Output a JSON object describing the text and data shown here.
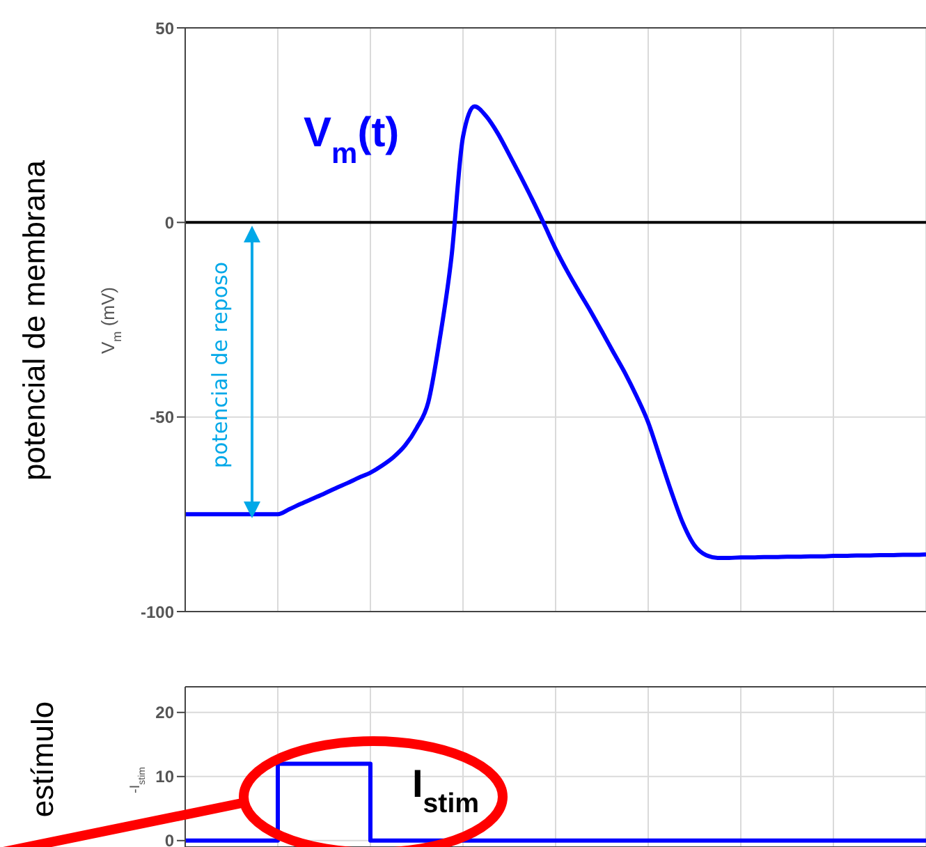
{
  "chart_data": [
    {
      "type": "line",
      "ylabel": "V$_{m}$ (mV)",
      "ylim": [
        -100,
        50
      ],
      "yticks": [
        -100,
        -50,
        0,
        50
      ],
      "grid": true,
      "tick_labels": "y",
      "annotations": [
        "potencial de membrana",
        "potencial de reposo"
      ],
      "ref_lines": [
        {
          "axis": "y",
          "value": 0,
          "color": "#000000"
        }
      ],
      "categories": [
        null,
        null,
        null,
        null,
        null,
        null,
        null,
        null,
        null,
        null,
        null,
        null,
        null,
        null,
        null,
        null,
        null,
        null,
        null,
        null,
        null,
        null,
        null,
        null,
        null,
        null,
        null,
        null,
        null,
        null,
        null,
        null,
        null,
        null,
        null,
        null,
        null,
        null,
        null,
        null,
        null,
        null,
        null,
        null,
        null,
        null,
        null,
        null,
        null,
        null,
        null,
        null,
        null,
        null,
        null,
        null,
        null,
        null,
        null,
        null,
        null,
        null,
        null,
        null,
        null
      ],
      "series": [
        {
          "name": "V$_{m}$(t)",
          "color": "#0000ff",
          "values": [
            -75,
            -75,
            -75,
            -75,
            -75,
            -75,
            -75,
            -75,
            -75,
            -73.7,
            -72.3,
            -71,
            -69.7,
            -68.3,
            -67,
            -65.6,
            -64.3,
            -62.5,
            -60.3,
            -57.3,
            -52.8,
            -46.2,
            -29.8,
            -9,
            22,
            29.8,
            27.3,
            22.9,
            17.4,
            11.7,
            5.8,
            -0.4,
            -6.8,
            -12.5,
            -17.7,
            -22.7,
            -28,
            -33.4,
            -38.7,
            -44.7,
            -51.4,
            -60.3,
            -69.2,
            -77.3,
            -83,
            -85.5,
            -86.2,
            -86.2,
            -86.1,
            -86.1,
            -86,
            -86,
            -85.9,
            -85.9,
            -85.8,
            -85.8,
            -85.7,
            -85.7,
            -85.6,
            -85.6,
            -85.5,
            -85.5,
            -85.4,
            -85.4,
            -85.3
          ]
        }
      ]
    },
    {
      "type": "step",
      "ylabel": "-I$_{stim}$",
      "ylim": [
        -1,
        24
      ],
      "yticks": [
        0,
        10,
        20
      ],
      "grid": true,
      "tick_labels": "y",
      "annotations": [
        "estímulo"
      ],
      "categories": [
        null,
        null,
        null,
        null,
        null,
        null,
        null,
        null,
        null,
        null,
        null,
        null,
        null,
        null,
        null,
        null,
        null,
        null,
        null,
        null,
        null,
        null,
        null,
        null,
        null,
        null,
        null,
        null,
        null,
        null,
        null,
        null,
        null,
        null,
        null,
        null,
        null,
        null,
        null,
        null,
        null,
        null,
        null,
        null,
        null,
        null,
        null,
        null,
        null,
        null,
        null,
        null,
        null,
        null,
        null,
        null,
        null,
        null,
        null,
        null,
        null,
        null,
        null,
        null,
        null
      ],
      "series": [
        {
          "name": "I$_{stim}$",
          "color": "#0000ff",
          "values": [
            0,
            0,
            0,
            0,
            0,
            0,
            0,
            0,
            12,
            12,
            12,
            12,
            12,
            12,
            12,
            12,
            0,
            0,
            0,
            0,
            0,
            0,
            0,
            0,
            0,
            0,
            0,
            0,
            0,
            0,
            0,
            0,
            0,
            0,
            0,
            0,
            0,
            0,
            0,
            0,
            0,
            0,
            0,
            0,
            0,
            0,
            0,
            0,
            0,
            0,
            0,
            0,
            0,
            0,
            0,
            0,
            0,
            0,
            0,
            0,
            0,
            0,
            0,
            0,
            0
          ]
        }
      ]
    }
  ]
}
